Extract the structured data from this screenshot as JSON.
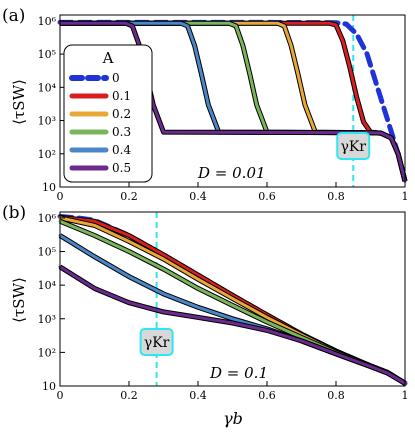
{
  "figure": {
    "xlabel": "γb",
    "ylabel": "⟨τSW⟩"
  },
  "legend": {
    "title": "A",
    "entries": [
      {
        "label": "0",
        "color": "#1f33d6",
        "dashed": true
      },
      {
        "label": "0.1",
        "color": "#d81e1e"
      },
      {
        "label": "0.2",
        "color": "#e8a838"
      },
      {
        "label": "0.3",
        "color": "#7ab55c"
      },
      {
        "label": "0.4",
        "color": "#4a86c8"
      },
      {
        "label": "0.5",
        "color": "#6b2a8e"
      }
    ]
  },
  "chart_data": [
    {
      "type": "line",
      "panel_label": "(a)",
      "annotation": "D = 0.01",
      "gamma_kr_label": "γKr",
      "gamma_kr": 0.85,
      "xlim": [
        0,
        1
      ],
      "ylim": [
        10,
        1500000
      ],
      "y_scale": "log",
      "x_ticks": [
        0,
        0.2,
        0.4,
        0.6,
        0.8,
        1
      ],
      "x_tick_labels": [
        "0",
        "0.2",
        "0.4",
        "0.6",
        "0.8",
        "1"
      ],
      "y_ticks": [
        10,
        100,
        1000,
        10000,
        100000,
        1000000
      ],
      "y_tick_labels": [
        "10",
        "10²",
        "10³",
        "10⁴",
        "10⁵",
        "10⁶"
      ],
      "grid": false,
      "legend_position": "left",
      "series": [
        {
          "name": "0",
          "x": [
            0,
            0.6,
            0.8,
            0.83,
            0.86,
            0.89,
            0.92,
            0.95,
            0.98,
            1.0
          ],
          "y": [
            900000,
            900000,
            880000,
            800000,
            400000,
            100000,
            10000,
            1000,
            100,
            15
          ]
        },
        {
          "name": "0.1",
          "x": [
            0,
            0.78,
            0.8,
            0.82,
            0.84,
            0.86,
            0.88,
            0.9,
            0.93,
            0.96,
            0.98,
            1.0
          ],
          "y": [
            850000,
            850000,
            750000,
            250000,
            40000,
            5000,
            900,
            450,
            420,
            300,
            100,
            15
          ]
        },
        {
          "name": "0.2",
          "x": [
            0,
            0.63,
            0.65,
            0.67,
            0.69,
            0.71,
            0.74,
            0.9,
            0.93,
            0.96,
            0.98,
            1.0
          ],
          "y": [
            850000,
            850000,
            700000,
            180000,
            25000,
            3000,
            450,
            430,
            420,
            300,
            100,
            15
          ]
        },
        {
          "name": "0.3",
          "x": [
            0,
            0.49,
            0.51,
            0.53,
            0.55,
            0.57,
            0.6,
            0.9,
            0.93,
            0.96,
            0.98,
            1.0
          ],
          "y": [
            850000,
            850000,
            700000,
            180000,
            25000,
            3000,
            450,
            430,
            420,
            300,
            100,
            15
          ]
        },
        {
          "name": "0.4",
          "x": [
            0,
            0.35,
            0.37,
            0.39,
            0.41,
            0.43,
            0.46,
            0.9,
            0.93,
            0.96,
            0.98,
            1.0
          ],
          "y": [
            850000,
            850000,
            700000,
            180000,
            25000,
            3000,
            450,
            430,
            420,
            300,
            100,
            15
          ]
        },
        {
          "name": "0.5",
          "x": [
            0,
            0.19,
            0.21,
            0.23,
            0.25,
            0.27,
            0.3,
            0.9,
            0.93,
            0.96,
            0.98,
            1.0
          ],
          "y": [
            850000,
            850000,
            700000,
            180000,
            25000,
            3000,
            450,
            430,
            420,
            300,
            100,
            15
          ]
        }
      ]
    },
    {
      "type": "line",
      "panel_label": "(b)",
      "annotation": "D = 0.1",
      "gamma_kr_label": "γKr",
      "gamma_kr": 0.28,
      "xlim": [
        0,
        1
      ],
      "ylim": [
        10,
        1500000
      ],
      "y_scale": "log",
      "x_ticks": [
        0,
        0.2,
        0.4,
        0.6,
        0.8,
        1
      ],
      "x_tick_labels": [
        "0",
        "0.2",
        "0.4",
        "0.6",
        "0.8",
        "1"
      ],
      "y_ticks": [
        10,
        100,
        1000,
        10000,
        100000,
        1000000
      ],
      "y_tick_labels": [
        "10",
        "10²",
        "10³",
        "10⁴",
        "10⁵",
        "10⁶"
      ],
      "grid": false,
      "series": [
        {
          "name": "0",
          "x": [
            0,
            0.05,
            0.1,
            0.2,
            0.3,
            0.4,
            0.5,
            0.6,
            0.7,
            0.8,
            0.9,
            0.95,
            1.0
          ],
          "y": [
            1100000,
            1000000,
            850000,
            300000,
            80000,
            20000,
            5000,
            1300,
            350,
            110,
            40,
            25,
            12
          ]
        },
        {
          "name": "0.1",
          "x": [
            0,
            0.1,
            0.2,
            0.3,
            0.4,
            0.5,
            0.6,
            0.7,
            0.8,
            0.9,
            0.95,
            1.0
          ],
          "y": [
            1050000,
            800000,
            300000,
            80000,
            20000,
            5000,
            1300,
            350,
            110,
            40,
            25,
            12
          ]
        },
        {
          "name": "0.2",
          "x": [
            0,
            0.1,
            0.2,
            0.3,
            0.4,
            0.5,
            0.6,
            0.7,
            0.8,
            0.9,
            0.95,
            1.0
          ],
          "y": [
            1000000,
            600000,
            200000,
            60000,
            15000,
            4000,
            1100,
            330,
            105,
            40,
            25,
            12
          ]
        },
        {
          "name": "0.3",
          "x": [
            0,
            0.1,
            0.2,
            0.3,
            0.4,
            0.5,
            0.6,
            0.7,
            0.8,
            0.9,
            0.95,
            1.0
          ],
          "y": [
            800000,
            300000,
            100000,
            30000,
            8000,
            2500,
            800,
            280,
            100,
            40,
            25,
            12
          ]
        },
        {
          "name": "0.4",
          "x": [
            0,
            0.1,
            0.2,
            0.3,
            0.4,
            0.5,
            0.6,
            0.7,
            0.8,
            0.9,
            0.95,
            1.0
          ],
          "y": [
            300000,
            70000,
            18000,
            5500,
            2200,
            1000,
            500,
            220,
            90,
            38,
            24,
            12
          ]
        },
        {
          "name": "0.5",
          "x": [
            0,
            0.1,
            0.2,
            0.3,
            0.4,
            0.5,
            0.6,
            0.7,
            0.8,
            0.9,
            0.95,
            1.0
          ],
          "y": [
            35000,
            8000,
            3000,
            1600,
            1100,
            750,
            450,
            220,
            90,
            38,
            24,
            12
          ]
        }
      ]
    }
  ]
}
